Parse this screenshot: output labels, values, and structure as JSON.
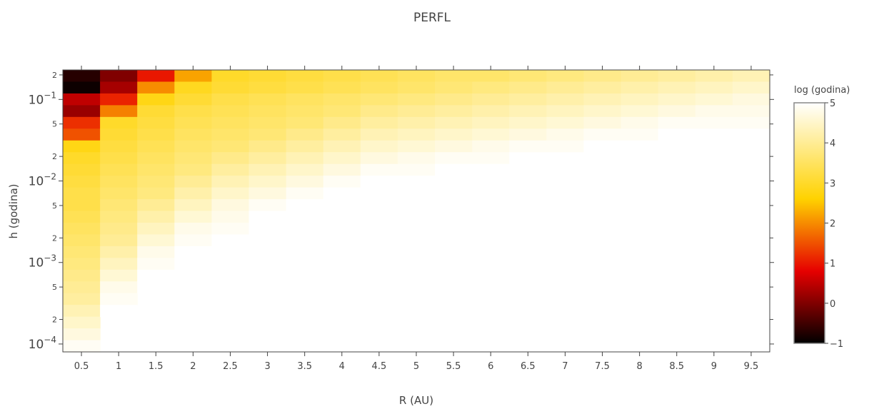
{
  "chart_data": {
    "type": "heatmap",
    "title": "PERFL",
    "xlabel": "R (AU)",
    "ylabel": "h (godina)",
    "x": [
      0.5,
      1,
      1.5,
      2,
      2.5,
      3,
      3.5,
      4,
      4.5,
      5,
      5.5,
      6,
      6.5,
      7,
      7.5,
      8,
      8.5,
      9,
      9.5
    ],
    "x_tick_labels": [
      "0.5",
      "1",
      "1.5",
      "2",
      "2.5",
      "3",
      "3.5",
      "4",
      "4.5",
      "5",
      "5.5",
      "6",
      "6.5",
      "7",
      "7.5",
      "8",
      "8.5",
      "9",
      "9.5"
    ],
    "y_scale": "log",
    "ylim": [
      8e-05,
      0.23
    ],
    "y_major_ticks": [
      {
        "value": 0.1,
        "base": "10",
        "exp": "−1"
      },
      {
        "value": 0.01,
        "base": "10",
        "exp": "−2"
      },
      {
        "value": 0.001,
        "base": "10",
        "exp": "−3"
      },
      {
        "value": 0.0001,
        "base": "10",
        "exp": "−4"
      }
    ],
    "y_minor_ticks": [
      {
        "value": 0.2,
        "label": "2"
      },
      {
        "value": 0.05,
        "label": "5"
      },
      {
        "value": 0.02,
        "label": "2"
      },
      {
        "value": 0.005,
        "label": "5"
      },
      {
        "value": 0.002,
        "label": "2"
      },
      {
        "value": 0.0005,
        "label": "5"
      },
      {
        "value": 0.0002,
        "label": "2"
      }
    ],
    "y_bins": 24,
    "column_heights": [
      24,
      21,
      19,
      17,
      15,
      14,
      13,
      12,
      11,
      11,
      10,
      10,
      9,
      9,
      8,
      8,
      7,
      7,
      7
    ],
    "z": [
      [
        -0.7,
        -0.9,
        0.5,
        0.2,
        1.2,
        1.5,
        2.8,
        3.0,
        3.1,
        3.2,
        3.3,
        3.3,
        3.4,
        3.5,
        3.6,
        3.7,
        3.8,
        3.9,
        4.0,
        4.1,
        4.3,
        4.5,
        4.7,
        4.9
      ],
      [
        0.0,
        0.3,
        1.1,
        1.9,
        3.0,
        3.1,
        3.2,
        3.3,
        3.4,
        3.5,
        3.6,
        3.7,
        3.8,
        3.9,
        4.0,
        4.2,
        4.4,
        4.6,
        4.8,
        4.9,
        5.0
      ],
      [
        1.0,
        2.0,
        2.8,
        3.1,
        3.2,
        3.3,
        3.4,
        3.5,
        3.6,
        3.7,
        3.8,
        4.0,
        4.2,
        4.4,
        4.6,
        4.8,
        4.9,
        5.0,
        5.0
      ],
      [
        2.2,
        2.9,
        3.1,
        3.3,
        3.4,
        3.5,
        3.6,
        3.7,
        3.8,
        4.0,
        4.2,
        4.4,
        4.6,
        4.8,
        4.9,
        5.0,
        5.0
      ],
      [
        3.0,
        3.1,
        3.3,
        3.4,
        3.5,
        3.6,
        3.7,
        3.9,
        4.1,
        4.3,
        4.5,
        4.7,
        4.8,
        4.9,
        5.0
      ],
      [
        3.1,
        3.2,
        3.4,
        3.5,
        3.6,
        3.7,
        3.9,
        4.1,
        4.3,
        4.5,
        4.7,
        4.9,
        5.0,
        5.0
      ],
      [
        3.2,
        3.3,
        3.5,
        3.6,
        3.7,
        3.9,
        4.1,
        4.3,
        4.5,
        4.7,
        4.9,
        5.0,
        5.0
      ],
      [
        3.3,
        3.4,
        3.6,
        3.7,
        3.9,
        4.1,
        4.3,
        4.5,
        4.7,
        4.9,
        5.0,
        5.0
      ],
      [
        3.4,
        3.5,
        3.7,
        3.9,
        4.1,
        4.3,
        4.5,
        4.7,
        4.9,
        5.0,
        5.0
      ],
      [
        3.5,
        3.6,
        3.8,
        4.0,
        4.2,
        4.4,
        4.6,
        4.8,
        4.9,
        5.0,
        5.0
      ],
      [
        3.6,
        3.7,
        3.9,
        4.1,
        4.3,
        4.5,
        4.7,
        4.9,
        5.0,
        5.0
      ],
      [
        3.6,
        3.8,
        4.0,
        4.2,
        4.4,
        4.6,
        4.8,
        4.9,
        5.0,
        5.0
      ],
      [
        3.7,
        3.9,
        4.1,
        4.3,
        4.5,
        4.7,
        4.9,
        5.0,
        5.0
      ],
      [
        3.8,
        4.0,
        4.2,
        4.4,
        4.6,
        4.8,
        4.9,
        5.0,
        5.0
      ],
      [
        3.9,
        4.1,
        4.3,
        4.5,
        4.7,
        4.9,
        5.0,
        5.0
      ],
      [
        4.0,
        4.2,
        4.4,
        4.6,
        4.8,
        4.9,
        5.0,
        5.0
      ],
      [
        4.1,
        4.3,
        4.5,
        4.7,
        4.9,
        5.0,
        5.0
      ],
      [
        4.2,
        4.4,
        4.6,
        4.8,
        4.9,
        5.0,
        5.0
      ],
      [
        4.3,
        4.5,
        4.7,
        4.8,
        4.9,
        5.0,
        5.0
      ]
    ],
    "colorbar": {
      "title": "log (godina)",
      "min": -1,
      "max": 5,
      "ticks": [
        {
          "value": 5,
          "label": "5"
        },
        {
          "value": 4,
          "label": "4"
        },
        {
          "value": 3,
          "label": "3"
        },
        {
          "value": 2,
          "label": "2"
        },
        {
          "value": 1,
          "label": "1"
        },
        {
          "value": 0,
          "label": "0"
        },
        {
          "value": -1,
          "label": "−1"
        }
      ],
      "colorscale": [
        [
          0.0,
          "#000000"
        ],
        [
          0.3,
          "#e60000"
        ],
        [
          0.6,
          "#ffd200"
        ],
        [
          1.0,
          "#ffffff"
        ]
      ]
    },
    "grid": false
  }
}
